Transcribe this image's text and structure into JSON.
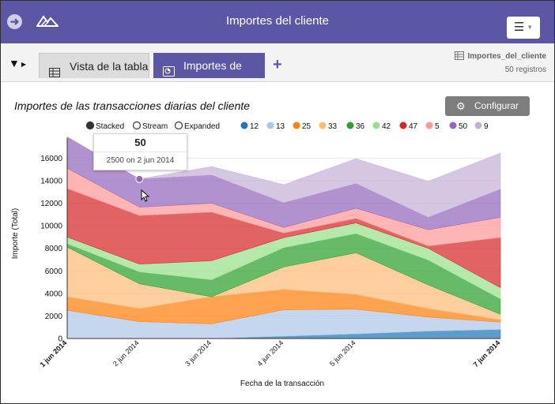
{
  "header": {
    "title": "Importes del cliente",
    "menu_icon": "hamburger-icon",
    "back_icon": "arrow-left-icon",
    "logo_icon": "mountain-logo-icon",
    "accent": "#5b57a5"
  },
  "toolbar": {
    "filter_icon": "funnel-icon",
    "tabs": [
      {
        "label": "Vista de la tabla",
        "icon": "table-icon"
      },
      {
        "label": "Importes de las...",
        "icon": "chart-icon"
      }
    ],
    "add_icon": "plus-icon",
    "dataset": {
      "name": "Importes_del_cliente",
      "count": "50 registros",
      "icon": "table-icon"
    }
  },
  "chart_title": "Importes de las transacciones diarias del cliente",
  "configure_label": "Configurar",
  "mode_options": [
    {
      "label": "Stacked",
      "selected": true
    },
    {
      "label": "Stream",
      "selected": false
    },
    {
      "label": "Expanded",
      "selected": false
    }
  ],
  "tooltip": {
    "title": "50",
    "text": "2500 on 2 jun 2014"
  },
  "chart_data": {
    "type": "area",
    "stacked": true,
    "title": "Importes de las transacciones diarias del cliente",
    "xlabel": "Fecha de la transacción",
    "ylabel": "Importe (Total)",
    "x": [
      "2014-06-01",
      "2014-06-02",
      "2014-06-03",
      "2014-06-04",
      "2014-06-05",
      "2014-06-06",
      "2014-06-07"
    ],
    "x_ticks": [
      {
        "label": "1 jun 2014",
        "bold": true
      },
      {
        "label": "2 jun 2014",
        "bold": false
      },
      {
        "label": "3 jun 2014",
        "bold": false
      },
      {
        "label": "4 jun 2014",
        "bold": false
      },
      {
        "label": "5 jun 2014",
        "bold": false
      },
      {
        "label": "7 jun 2014",
        "bold": true
      }
    ],
    "y_ticks": [
      "0",
      "2000",
      "4000",
      "6000",
      "8000",
      "10000",
      "12000",
      "14000",
      "16000"
    ],
    "ylim": [
      0,
      17500
    ],
    "grid": true,
    "legend_position": "top",
    "series": [
      {
        "name": "12",
        "color": "#1f77b4",
        "values": [
          0,
          0,
          0,
          200,
          400,
          650,
          800
        ]
      },
      {
        "name": "13",
        "color": "#aec7e8",
        "values": [
          2500,
          1500,
          1300,
          2350,
          2200,
          1250,
          650
        ]
      },
      {
        "name": "25",
        "color": "#ff7f0e",
        "values": [
          1200,
          1150,
          2400,
          1800,
          1300,
          750,
          200
        ]
      },
      {
        "name": "33",
        "color": "#ffbb78",
        "values": [
          4400,
          2200,
          0,
          2000,
          3700,
          2100,
          500
        ]
      },
      {
        "name": "36",
        "color": "#2ca02c",
        "values": [
          300,
          1050,
          1500,
          1700,
          1700,
          2200,
          1350
        ]
      },
      {
        "name": "42",
        "color": "#98df8a",
        "values": [
          600,
          700,
          1700,
          900,
          950,
          1050,
          1000
        ]
      },
      {
        "name": "47",
        "color": "#d62728",
        "values": [
          4300,
          4300,
          4300,
          400,
          400,
          200,
          4450
        ]
      },
      {
        "name": "5",
        "color": "#ff9896",
        "values": [
          1800,
          750,
          800,
          500,
          900,
          1450,
          1800
        ]
      },
      {
        "name": "50",
        "color": "#9467bd",
        "values": [
          2800,
          2500,
          2500,
          2200,
          2200,
          1100,
          2500
        ]
      },
      {
        "name": "9",
        "color": "#c5b0d5",
        "values": [
          0,
          0,
          750,
          1600,
          2200,
          3200,
          3200
        ]
      }
    ]
  }
}
